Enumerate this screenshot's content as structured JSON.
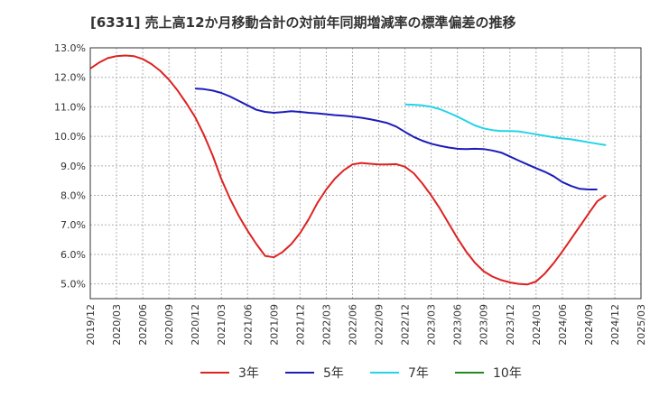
{
  "chart_data": {
    "type": "line",
    "title": "[6331]  売上高12か月移動合計の対前年同期増減率の標準偏差の推移",
    "xlabel": "",
    "ylabel": "",
    "ylim": [
      4.5,
      13.0
    ],
    "yticks": [
      5.0,
      6.0,
      7.0,
      8.0,
      9.0,
      10.0,
      11.0,
      12.0,
      13.0
    ],
    "ytick_labels": [
      "5.0%",
      "6.0%",
      "7.0%",
      "8.0%",
      "9.0%",
      "10.0%",
      "11.0%",
      "12.0%",
      "13.0%"
    ],
    "x_tick_labels": [
      "2019/12",
      "2020/03",
      "2020/06",
      "2020/09",
      "2020/12",
      "2021/03",
      "2021/06",
      "2021/09",
      "2021/12",
      "2022/03",
      "2022/06",
      "2022/09",
      "2022/12",
      "2023/03",
      "2023/06",
      "2023/09",
      "2023/12",
      "2024/03",
      "2024/06",
      "2024/09",
      "2024/12",
      "2025/03"
    ],
    "grid": true,
    "legend_position": "bottom",
    "series": [
      {
        "name": "3年",
        "color": "#dd2222",
        "points": [
          [
            "2019/12",
            12.3
          ],
          [
            "2020/01",
            12.5
          ],
          [
            "2020/02",
            12.65
          ],
          [
            "2020/03",
            12.72
          ],
          [
            "2020/04",
            12.74
          ],
          [
            "2020/05",
            12.72
          ],
          [
            "2020/06",
            12.62
          ],
          [
            "2020/07",
            12.45
          ],
          [
            "2020/08",
            12.22
          ],
          [
            "2020/09",
            11.92
          ],
          [
            "2020/10",
            11.55
          ],
          [
            "2020/11",
            11.12
          ],
          [
            "2020/12",
            10.65
          ],
          [
            "2021/01",
            10.05
          ],
          [
            "2021/02",
            9.35
          ],
          [
            "2021/03",
            8.55
          ],
          [
            "2021/04",
            7.88
          ],
          [
            "2021/05",
            7.3
          ],
          [
            "2021/06",
            6.8
          ],
          [
            "2021/07",
            6.35
          ],
          [
            "2021/08",
            5.95
          ],
          [
            "2021/09",
            5.9
          ],
          [
            "2021/10",
            6.08
          ],
          [
            "2021/11",
            6.35
          ],
          [
            "2021/12",
            6.72
          ],
          [
            "2022/01",
            7.2
          ],
          [
            "2022/02",
            7.75
          ],
          [
            "2022/03",
            8.2
          ],
          [
            "2022/04",
            8.57
          ],
          [
            "2022/05",
            8.85
          ],
          [
            "2022/06",
            9.05
          ],
          [
            "2022/07",
            9.1
          ],
          [
            "2022/08",
            9.07
          ],
          [
            "2022/09",
            9.05
          ],
          [
            "2022/10",
            9.05
          ],
          [
            "2022/11",
            9.06
          ],
          [
            "2022/12",
            8.97
          ],
          [
            "2023/01",
            8.75
          ],
          [
            "2023/02",
            8.4
          ],
          [
            "2023/03",
            8.0
          ],
          [
            "2023/04",
            7.55
          ],
          [
            "2023/05",
            7.05
          ],
          [
            "2023/06",
            6.55
          ],
          [
            "2023/07",
            6.1
          ],
          [
            "2023/08",
            5.72
          ],
          [
            "2023/09",
            5.43
          ],
          [
            "2023/10",
            5.25
          ],
          [
            "2023/11",
            5.13
          ],
          [
            "2023/12",
            5.05
          ],
          [
            "2024/01",
            5.0
          ],
          [
            "2024/02",
            4.98
          ],
          [
            "2024/03",
            5.08
          ],
          [
            "2024/04",
            5.35
          ],
          [
            "2024/05",
            5.7
          ],
          [
            "2024/06",
            6.1
          ],
          [
            "2024/07",
            6.52
          ],
          [
            "2024/08",
            6.95
          ],
          [
            "2024/09",
            7.38
          ],
          [
            "2024/10",
            7.8
          ],
          [
            "2024/11",
            8.0
          ]
        ]
      },
      {
        "name": "5年",
        "color": "#1c1cbb",
        "points": [
          [
            "2020/12",
            11.62
          ],
          [
            "2021/01",
            11.6
          ],
          [
            "2021/02",
            11.55
          ],
          [
            "2021/03",
            11.47
          ],
          [
            "2021/04",
            11.35
          ],
          [
            "2021/05",
            11.2
          ],
          [
            "2021/06",
            11.05
          ],
          [
            "2021/07",
            10.9
          ],
          [
            "2021/08",
            10.83
          ],
          [
            "2021/09",
            10.8
          ],
          [
            "2021/10",
            10.82
          ],
          [
            "2021/11",
            10.85
          ],
          [
            "2021/12",
            10.83
          ],
          [
            "2022/01",
            10.8
          ],
          [
            "2022/02",
            10.78
          ],
          [
            "2022/03",
            10.75
          ],
          [
            "2022/04",
            10.72
          ],
          [
            "2022/05",
            10.7
          ],
          [
            "2022/06",
            10.67
          ],
          [
            "2022/07",
            10.63
          ],
          [
            "2022/08",
            10.58
          ],
          [
            "2022/09",
            10.52
          ],
          [
            "2022/10",
            10.45
          ],
          [
            "2022/11",
            10.33
          ],
          [
            "2022/12",
            10.15
          ],
          [
            "2023/01",
            9.98
          ],
          [
            "2023/02",
            9.85
          ],
          [
            "2023/03",
            9.75
          ],
          [
            "2023/04",
            9.68
          ],
          [
            "2023/05",
            9.62
          ],
          [
            "2023/06",
            9.58
          ],
          [
            "2023/07",
            9.57
          ],
          [
            "2023/08",
            9.58
          ],
          [
            "2023/09",
            9.57
          ],
          [
            "2023/10",
            9.52
          ],
          [
            "2023/11",
            9.45
          ],
          [
            "2023/12",
            9.32
          ],
          [
            "2024/01",
            9.18
          ],
          [
            "2024/02",
            9.05
          ],
          [
            "2024/03",
            8.92
          ],
          [
            "2024/04",
            8.8
          ],
          [
            "2024/05",
            8.65
          ],
          [
            "2024/06",
            8.45
          ],
          [
            "2024/07",
            8.32
          ],
          [
            "2024/08",
            8.22
          ],
          [
            "2024/09",
            8.2
          ],
          [
            "2024/10",
            8.2
          ]
        ]
      },
      {
        "name": "7年",
        "color": "#22d4e8",
        "points": [
          [
            "2022/12",
            11.08
          ],
          [
            "2023/01",
            11.07
          ],
          [
            "2023/02",
            11.05
          ],
          [
            "2023/03",
            11.0
          ],
          [
            "2023/04",
            10.92
          ],
          [
            "2023/05",
            10.8
          ],
          [
            "2023/06",
            10.67
          ],
          [
            "2023/07",
            10.52
          ],
          [
            "2023/08",
            10.37
          ],
          [
            "2023/09",
            10.27
          ],
          [
            "2023/10",
            10.21
          ],
          [
            "2023/11",
            10.18
          ],
          [
            "2023/12",
            10.18
          ],
          [
            "2024/01",
            10.17
          ],
          [
            "2024/02",
            10.12
          ],
          [
            "2024/03",
            10.07
          ],
          [
            "2024/04",
            10.02
          ],
          [
            "2024/05",
            9.97
          ],
          [
            "2024/06",
            9.93
          ],
          [
            "2024/07",
            9.9
          ],
          [
            "2024/08",
            9.85
          ],
          [
            "2024/09",
            9.8
          ],
          [
            "2024/10",
            9.75
          ],
          [
            "2024/11",
            9.7
          ]
        ]
      },
      {
        "name": "10年",
        "color": "#228822",
        "points": []
      }
    ]
  }
}
